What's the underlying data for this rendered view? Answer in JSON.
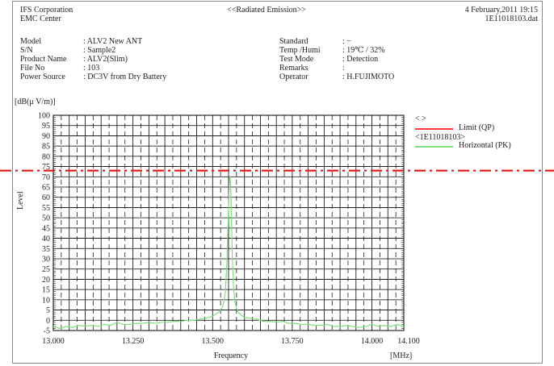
{
  "header": {
    "company": "IFS Corporation",
    "center": "EMC Center",
    "title": "<<Radiated Emission>>",
    "datetime": "4 February,2011 19:15",
    "file_name": "1E11018103.dat"
  },
  "info_left": [
    {
      "label": "Model",
      "value": ": ALV2 New ANT"
    },
    {
      "label": "S/N",
      "value": ": Sample2"
    },
    {
      "label": "Product Name",
      "value": ": ALV2(Slim)"
    },
    {
      "label": "File No",
      "value": ": 103"
    },
    {
      "label": "Power Source",
      "value": ": DC3V from Dry Battery"
    }
  ],
  "info_right": [
    {
      "label": "Standard",
      "value": ": −"
    },
    {
      "label": "Temp /Humi",
      "value": ": 19℃ / 32%"
    },
    {
      "label": "Test Mode",
      "value": ": Detection"
    },
    {
      "label": "Remarks",
      "value": ":"
    },
    {
      "label": "Operator",
      "value": ": H.FUJIMOTO"
    }
  ],
  "legend": {
    "nav": "<  >",
    "limit_label": "Limit (QP)",
    "file_label": "<1E11018103>",
    "horizontal_label": "Horizontal (PK)"
  },
  "colors": {
    "limit": "#ff3b3b",
    "horizontal": "#7ee07e",
    "overlay_line": "#e31b1b",
    "grid": "#000000"
  },
  "chart_data": {
    "type": "line",
    "ylabel": "Level",
    "yunit": "[dB(μ V/m)]",
    "xlabel": "Frequency",
    "xunit": "[MHz]",
    "xlim": [
      13.0,
      14.1
    ],
    "ylim": [
      -5,
      100
    ],
    "yticks": [
      100,
      95,
      90,
      85,
      80,
      75,
      70,
      65,
      60,
      55,
      50,
      45,
      40,
      35,
      30,
      25,
      20,
      15,
      10,
      5,
      0,
      -5
    ],
    "xtick_labels": [
      "13.000",
      "13.250",
      "13.500",
      "13.750",
      "14.000",
      "14.100"
    ],
    "xticks": [
      13.0,
      13.25,
      13.5,
      13.75,
      14.0,
      14.1
    ],
    "grid": true,
    "legend_position": "right",
    "dashdot_line": {
      "y": 73
    },
    "series": [
      {
        "name": "Horizontal (PK)",
        "x": [
          13.0,
          13.02,
          13.04,
          13.06,
          13.08,
          13.1,
          13.12,
          13.14,
          13.16,
          13.18,
          13.2,
          13.22,
          13.24,
          13.26,
          13.28,
          13.3,
          13.32,
          13.34,
          13.36,
          13.38,
          13.4,
          13.42,
          13.44,
          13.46,
          13.48,
          13.5,
          13.51,
          13.52,
          13.53,
          13.535,
          13.54,
          13.545,
          13.55,
          13.553,
          13.556,
          13.559,
          13.562,
          13.566,
          13.57,
          13.575,
          13.58,
          13.59,
          13.6,
          13.62,
          13.64,
          13.66,
          13.68,
          13.7,
          13.72,
          13.74,
          13.76,
          13.78,
          13.8,
          13.82,
          13.84,
          13.86,
          13.88,
          13.9,
          13.92,
          13.94,
          13.96,
          13.98,
          14.0,
          14.02,
          14.04,
          14.06,
          14.08,
          14.1
        ],
        "y": [
          -3,
          -4,
          -3,
          -3.5,
          -2.5,
          -3,
          -2.5,
          -3,
          -2,
          -2.5,
          -1,
          -2,
          -2,
          -1.5,
          -1.5,
          -1,
          -1.5,
          -1,
          -1,
          -0.5,
          -0.5,
          0,
          0,
          0.5,
          1,
          2,
          3,
          4,
          6,
          9,
          14,
          28,
          55,
          70,
          68,
          50,
          30,
          15,
          9,
          6,
          4,
          2.5,
          1.5,
          1,
          0.5,
          -0.5,
          -0.5,
          -1,
          -0.5,
          -1.5,
          -1.5,
          -2,
          -2,
          -2.5,
          -2.5,
          -2,
          -3,
          -3,
          -2.5,
          -3,
          -3.5,
          -3,
          -2,
          -3,
          -2.5,
          -3,
          -2,
          -3
        ]
      }
    ]
  }
}
